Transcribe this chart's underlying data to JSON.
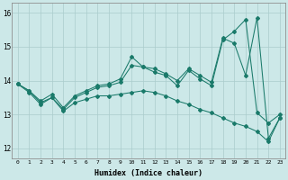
{
  "xlabel": "Humidex (Indice chaleur)",
  "bg_color": "#cce8e8",
  "grid_color": "#aacccc",
  "line_color": "#1a7a6a",
  "ylim": [
    11.7,
    16.3
  ],
  "xlim": [
    -0.5,
    23.5
  ],
  "yticks": [
    12,
    13,
    14,
    15,
    16
  ],
  "xticks": [
    0,
    1,
    2,
    3,
    4,
    5,
    6,
    7,
    8,
    9,
    10,
    11,
    12,
    13,
    14,
    15,
    16,
    17,
    18,
    19,
    20,
    21,
    22,
    23
  ],
  "series1": {
    "x": [
      0,
      1,
      2,
      3,
      4,
      5,
      6,
      7,
      8,
      9,
      10,
      11,
      12,
      13,
      14,
      15,
      16,
      17,
      18,
      19,
      20,
      21,
      22,
      23
    ],
    "y": [
      13.9,
      13.7,
      13.4,
      13.6,
      13.2,
      13.55,
      13.7,
      13.85,
      13.9,
      14.05,
      14.7,
      14.4,
      14.35,
      14.2,
      14.0,
      14.35,
      14.15,
      13.95,
      15.25,
      15.1,
      14.15,
      15.85,
      12.3,
      12.9
    ]
  },
  "series2": {
    "x": [
      0,
      1,
      2,
      3,
      4,
      5,
      6,
      7,
      8,
      9,
      10,
      11,
      12,
      13,
      14,
      15,
      16,
      17,
      18,
      19,
      20,
      21,
      22,
      23
    ],
    "y": [
      13.9,
      13.7,
      13.35,
      13.5,
      13.15,
      13.5,
      13.65,
      13.8,
      13.85,
      13.95,
      14.45,
      14.4,
      14.25,
      14.15,
      13.85,
      14.3,
      14.05,
      13.85,
      15.2,
      15.45,
      15.8,
      13.05,
      12.75,
      13.0
    ]
  },
  "series3": {
    "x": [
      0,
      1,
      2,
      3,
      4,
      5,
      6,
      7,
      8,
      9,
      10,
      11,
      12,
      13,
      14,
      15,
      16,
      17,
      18,
      19,
      20,
      21,
      22,
      23
    ],
    "y": [
      13.9,
      13.65,
      13.3,
      13.5,
      13.1,
      13.35,
      13.45,
      13.55,
      13.55,
      13.6,
      13.65,
      13.7,
      13.65,
      13.55,
      13.4,
      13.3,
      13.15,
      13.05,
      12.9,
      12.75,
      12.65,
      12.5,
      12.2,
      12.9
    ]
  }
}
